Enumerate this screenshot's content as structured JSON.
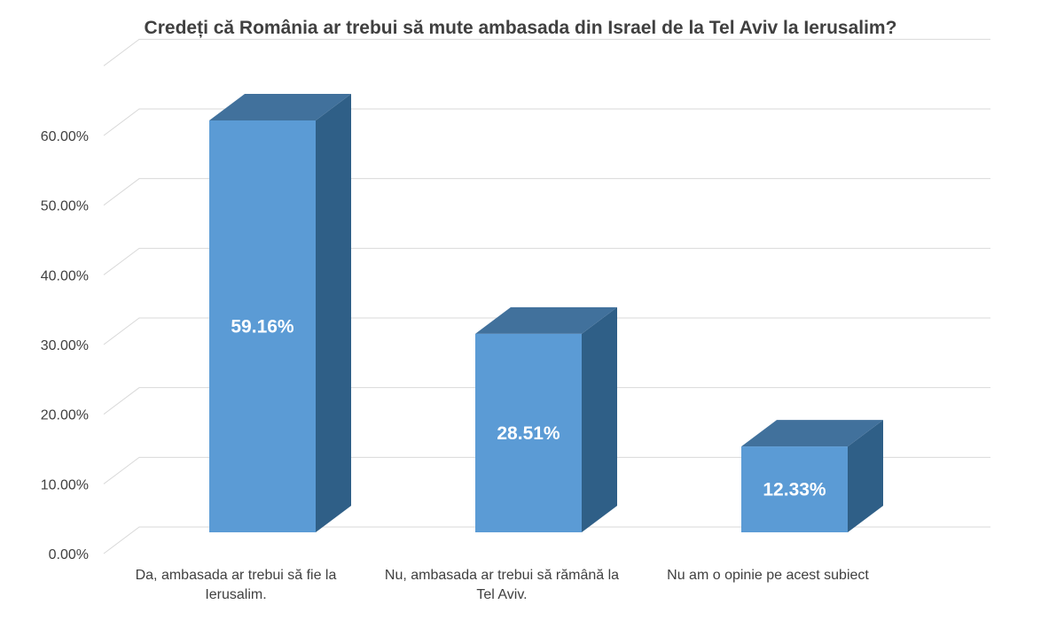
{
  "chart_data": {
    "type": "bar",
    "title": "Credeți că România ar trebui să mute ambasada din Israel de la Tel Aviv la Ierusalim?",
    "categories": [
      [
        "Da, ambasada ar trebui să fie la",
        "Ierusalim."
      ],
      [
        "Nu, ambasada ar trebui să rămână la",
        "Tel Aviv."
      ],
      [
        "Nu am o opinie pe acest subiect"
      ]
    ],
    "values": [
      59.16,
      28.51,
      12.33
    ],
    "data_labels": [
      "59.16%",
      "28.51%",
      "12.33%"
    ],
    "y_ticks": [
      "0.00%",
      "10.00%",
      "20.00%",
      "30.00%",
      "40.00%",
      "50.00%",
      "60.00%"
    ],
    "ylim": [
      0,
      60
    ],
    "style": "3d-column",
    "grid": true,
    "legend": "none",
    "colors": {
      "front": "#5b9bd5",
      "top": "#41719c",
      "side": "#2f5f87"
    }
  }
}
